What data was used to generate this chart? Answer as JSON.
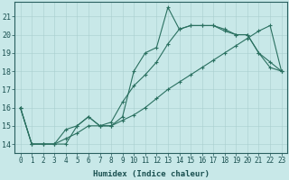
{
  "xlabel": "Humidex (Indice chaleur)",
  "bg_color": "#c8e8e8",
  "grid_color": "#a8cece",
  "line_color": "#2a7060",
  "xlim": [
    -0.5,
    23.5
  ],
  "ylim": [
    13.5,
    21.8
  ],
  "xticks": [
    0,
    1,
    2,
    3,
    4,
    5,
    6,
    7,
    8,
    9,
    10,
    11,
    12,
    13,
    14,
    15,
    16,
    17,
    18,
    19,
    20,
    21,
    22,
    23
  ],
  "yticks": [
    14,
    15,
    16,
    17,
    18,
    19,
    20,
    21
  ],
  "s1_x": [
    0,
    1,
    2,
    3,
    4,
    5,
    6,
    7,
    8,
    9,
    10,
    11,
    12,
    13,
    14,
    15,
    16,
    17,
    18,
    19,
    20,
    21,
    22,
    23
  ],
  "s1_y": [
    16,
    14,
    14,
    14,
    14,
    15,
    15.5,
    15,
    15,
    15.5,
    18,
    19,
    19.3,
    21.5,
    20.3,
    20.5,
    20.5,
    20.5,
    20.3,
    20,
    20,
    19,
    18.2,
    18
  ],
  "s2_x": [
    0,
    1,
    2,
    3,
    4,
    5,
    6,
    7,
    8,
    9,
    10,
    11,
    12,
    13,
    14,
    15,
    16,
    17,
    18,
    19,
    20,
    21,
    22,
    23
  ],
  "s2_y": [
    16,
    14,
    14,
    14,
    14.8,
    15,
    15.5,
    15,
    15.2,
    16.3,
    17.2,
    17.8,
    18.5,
    19.5,
    20.3,
    20.5,
    20.5,
    20.5,
    20.2,
    20,
    20,
    19,
    18.5,
    18
  ],
  "s3_x": [
    0,
    1,
    2,
    3,
    4,
    5,
    6,
    7,
    8,
    9,
    10,
    11,
    12,
    13,
    14,
    15,
    16,
    17,
    18,
    19,
    20,
    21,
    22,
    23
  ],
  "s3_y": [
    16,
    14,
    14,
    14,
    14.3,
    14.6,
    15,
    15,
    15,
    15.3,
    15.6,
    16,
    16.5,
    17,
    17.4,
    17.8,
    18.2,
    18.6,
    19,
    19.4,
    19.8,
    20.2,
    20.5,
    18
  ],
  "xlabel_fontsize": 6.5,
  "tick_fontsize": 5.5
}
